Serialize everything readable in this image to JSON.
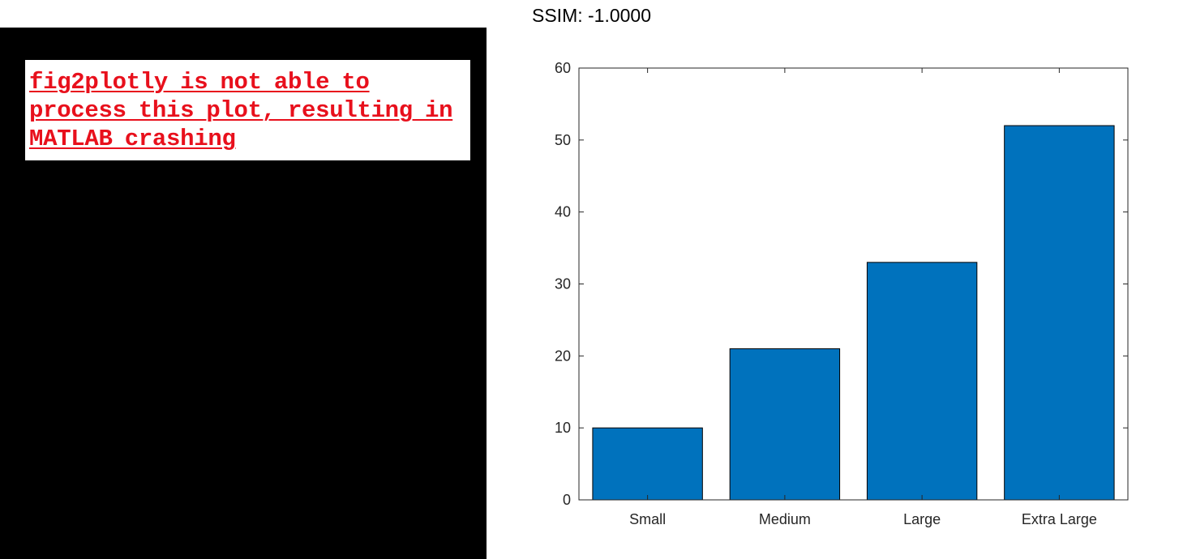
{
  "error_panel": {
    "message": "fig2plotly is not able to process this plot, resulting in MATLAB crashing"
  },
  "header": {
    "ssim_text": "SSIM: -1.0000"
  },
  "colors": {
    "bar": "#0072bd",
    "error_text": "#e8101c",
    "axis": "#262626"
  },
  "chart_data": {
    "type": "bar",
    "categories": [
      "Small",
      "Medium",
      "Large",
      "Extra Large"
    ],
    "values": [
      10,
      21,
      33,
      52
    ],
    "title": "",
    "xlabel": "",
    "ylabel": "",
    "ylim": [
      0,
      60
    ],
    "yticks": [
      0,
      10,
      20,
      30,
      40,
      50,
      60
    ],
    "grid": false,
    "legend": "none"
  }
}
